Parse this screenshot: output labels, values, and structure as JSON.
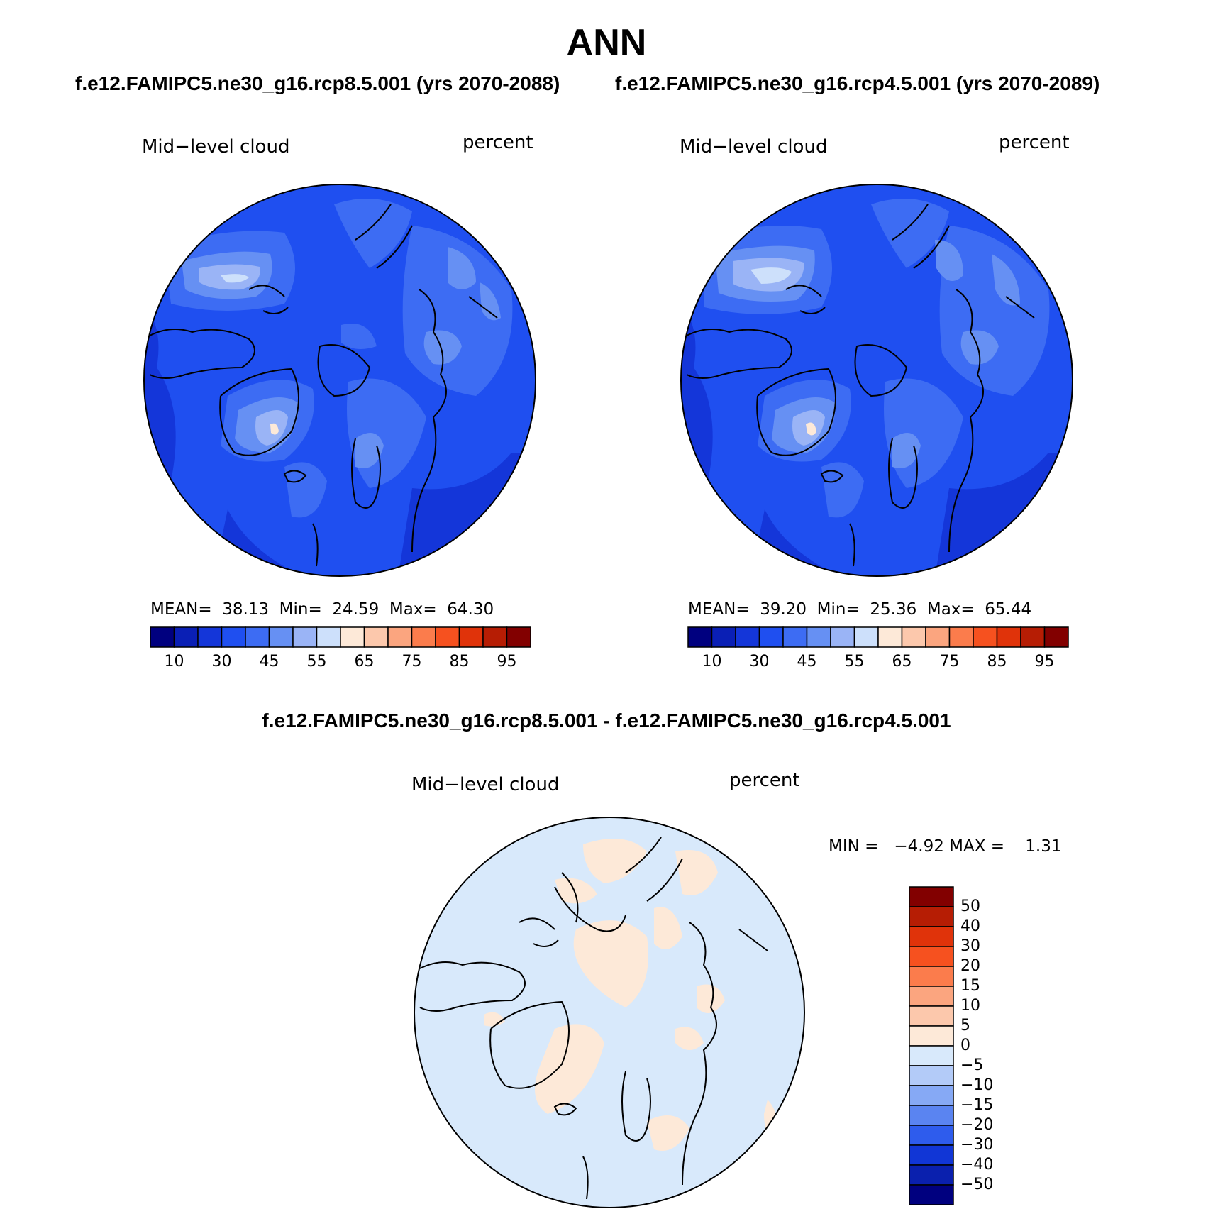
{
  "title": "ANN",
  "subtitle_left": "f.e12.FAMIPC5.ne30_g16.rcp8.5.001 (yrs 2070-2088)",
  "subtitle_right": "f.e12.FAMIPC5.ne30_g16.rcp4.5.001 (yrs 2070-2089)",
  "diff_title": "f.e12.FAMIPC5.ne30_g16.rcp8.5.001 - f.e12.FAMIPC5.ne30_g16.rcp4.5.001",
  "panels": [
    {
      "variable": "Mid−level cloud",
      "units": "percent",
      "stats_text": "MEAN=  38.13  Min=  24.59  Max=  64.30",
      "mean": 38.13,
      "min": 24.59,
      "max": 64.3
    },
    {
      "variable": "Mid−level cloud",
      "units": "percent",
      "stats_text": "MEAN=  39.20  Min=  25.36  Max=  65.44",
      "mean": 39.2,
      "min": 25.36,
      "max": 65.44
    }
  ],
  "diff_panel": {
    "variable": "Mid−level cloud",
    "units": "percent",
    "stats_text": "MIN =   −4.92 MAX =    1.31",
    "min": -4.92,
    "max": 1.31
  },
  "colorbar_main": {
    "colors": [
      "#00007f",
      "#0a1fb5",
      "#1436d9",
      "#1f4ff0",
      "#3d6cf3",
      "#6690f3",
      "#9ab4f6",
      "#cde0fb",
      "#fde9d8",
      "#fcc8ac",
      "#fba57f",
      "#fb7c4c",
      "#f6511f",
      "#e0330a",
      "#b61d04",
      "#820000"
    ],
    "ticks": [
      "10",
      "30",
      "45",
      "55",
      "65",
      "75",
      "85",
      "95"
    ]
  },
  "colorbar_diff": {
    "colors": [
      "#820000",
      "#b61d04",
      "#e0330a",
      "#f6511f",
      "#fb7c4c",
      "#fba57f",
      "#fcc8ac",
      "#fde9d8",
      "#d8e9fb",
      "#b3cbf8",
      "#86a9f5",
      "#5a84f1",
      "#2e5ced",
      "#1136d6",
      "#0a20ae",
      "#00007f"
    ],
    "ticks": [
      "50",
      "40",
      "30",
      "20",
      "15",
      "10",
      "5",
      "0",
      "−5",
      "−10",
      "−15",
      "−20",
      "−30",
      "−40",
      "−50"
    ]
  }
}
